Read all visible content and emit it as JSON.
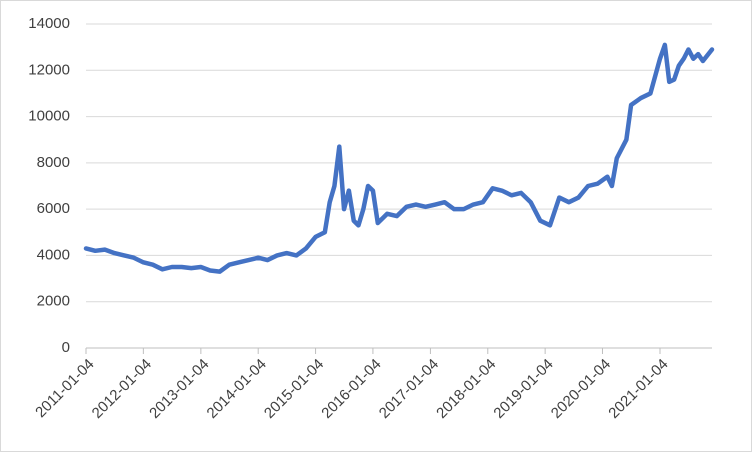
{
  "chart_data": {
    "type": "line",
    "x": [
      "2011-01-04",
      "2011-03-04",
      "2011-05-04",
      "2011-07-04",
      "2011-09-04",
      "2011-11-04",
      "2012-01-04",
      "2012-03-04",
      "2012-05-04",
      "2012-07-04",
      "2012-09-04",
      "2012-11-04",
      "2013-01-04",
      "2013-03-04",
      "2013-05-04",
      "2013-07-04",
      "2013-09-04",
      "2013-11-04",
      "2014-01-04",
      "2014-03-04",
      "2014-05-04",
      "2014-07-04",
      "2014-09-04",
      "2014-11-04",
      "2015-01-04",
      "2015-03-04",
      "2015-04-04",
      "2015-05-04",
      "2015-06-04",
      "2015-07-04",
      "2015-08-04",
      "2015-09-04",
      "2015-10-04",
      "2015-11-04",
      "2015-12-04",
      "2016-01-04",
      "2016-02-04",
      "2016-04-04",
      "2016-06-04",
      "2016-08-04",
      "2016-10-04",
      "2016-12-04",
      "2017-02-04",
      "2017-04-04",
      "2017-06-04",
      "2017-08-04",
      "2017-10-04",
      "2017-12-04",
      "2018-02-04",
      "2018-04-04",
      "2018-06-04",
      "2018-08-04",
      "2018-10-04",
      "2018-12-04",
      "2019-02-04",
      "2019-04-04",
      "2019-06-04",
      "2019-08-04",
      "2019-10-04",
      "2019-12-04",
      "2020-02-04",
      "2020-03-04",
      "2020-04-04",
      "2020-06-04",
      "2020-07-04",
      "2020-09-04",
      "2020-11-04",
      "2021-01-04",
      "2021-02-04",
      "2021-03-04",
      "2021-04-04",
      "2021-05-04",
      "2021-06-04",
      "2021-07-04",
      "2021-08-04",
      "2021-09-04",
      "2021-10-04",
      "2021-12-01"
    ],
    "values": [
      4300,
      4200,
      4250,
      4100,
      4000,
      3900,
      3700,
      3600,
      3400,
      3500,
      3500,
      3450,
      3500,
      3350,
      3300,
      3600,
      3700,
      3800,
      3900,
      3800,
      4000,
      4100,
      4000,
      4300,
      4800,
      5000,
      6300,
      7000,
      8700,
      6000,
      6800,
      5500,
      5300,
      6000,
      7000,
      6800,
      5400,
      5800,
      5700,
      6100,
      6200,
      6100,
      6200,
      6300,
      6000,
      6000,
      6200,
      6300,
      6900,
      6800,
      6600,
      6700,
      6300,
      5500,
      5300,
      6500,
      6300,
      6500,
      7000,
      7100,
      7400,
      7000,
      8200,
      9000,
      10500,
      10800,
      11000,
      12500,
      13100,
      11500,
      11600,
      12200,
      12500,
      12900,
      12500,
      12700,
      12400,
      12900
    ],
    "color": "#4472c4",
    "xlim": [
      "2011-01-04",
      "2021-12-01"
    ],
    "xticks": [
      "2011-01-04",
      "2012-01-04",
      "2013-01-04",
      "2014-01-04",
      "2015-01-04",
      "2016-01-04",
      "2017-01-04",
      "2018-01-04",
      "2019-01-04",
      "2020-01-04",
      "2021-01-04"
    ],
    "ylim": [
      0,
      14000
    ],
    "yticks": [
      0,
      2000,
      4000,
      6000,
      8000,
      10000,
      12000,
      14000
    ],
    "grid": true
  }
}
